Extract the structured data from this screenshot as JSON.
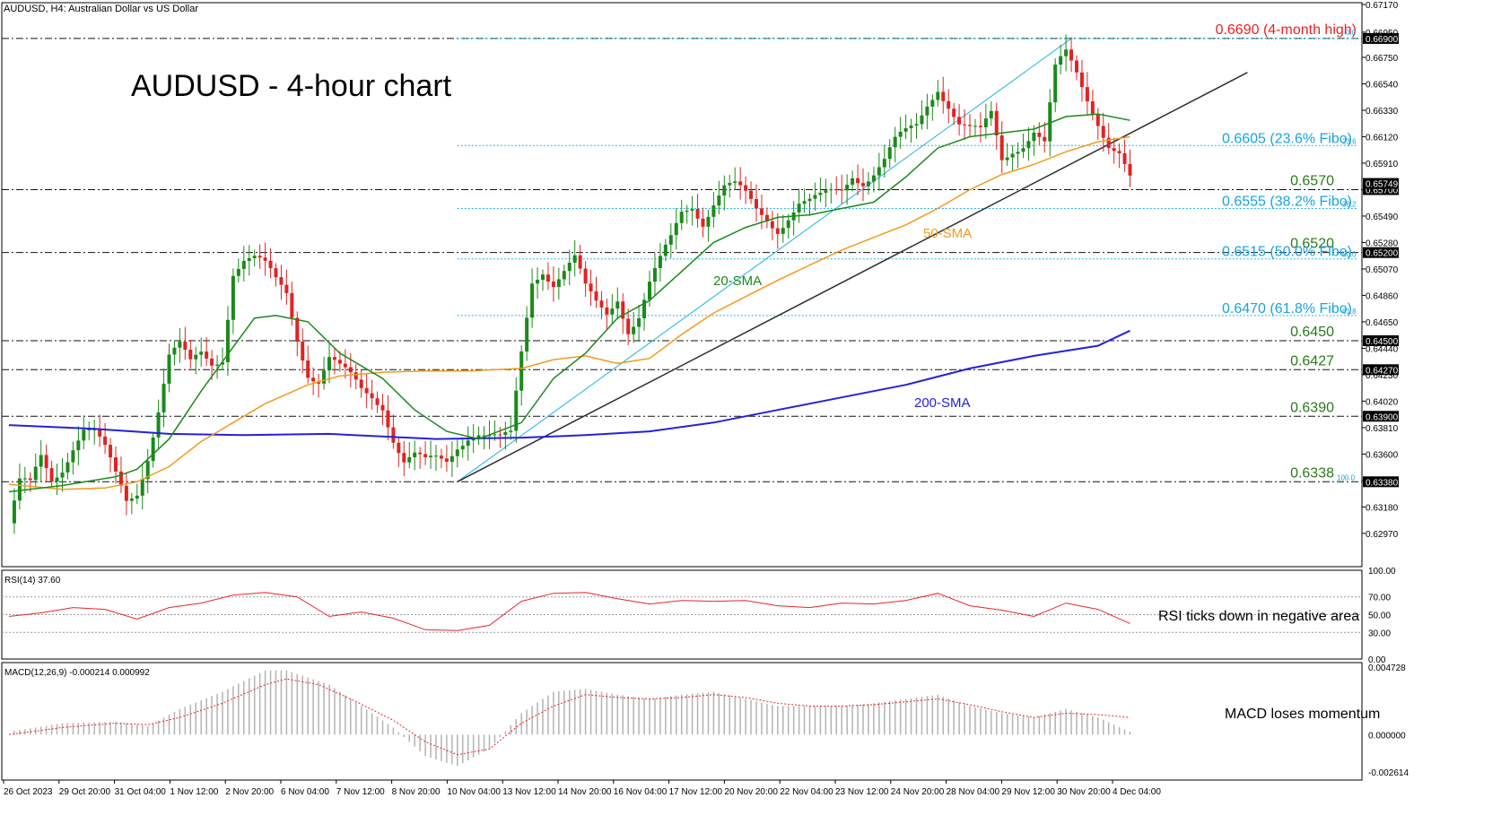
{
  "header": {
    "symbol_line": "AUDUSD, H4:  Australian Dollar vs US Dollar"
  },
  "title": "AUDUSD - 4-hour chart",
  "chart_data": {
    "type": "candlestick",
    "price_axis": {
      "range": [
        0.6272,
        0.6717
      ],
      "ticks": [
        "0.67170",
        "0.66950",
        "0.66750",
        "0.66540",
        "0.66330",
        "0.66120",
        "0.65910",
        "0.65700",
        "0.65490",
        "0.65280",
        "0.65070",
        "0.64860",
        "0.64650",
        "0.64440",
        "0.64230",
        "0.64020",
        "0.63810",
        "0.63600",
        "0.63390",
        "0.63180",
        "0.62970"
      ]
    },
    "time_axis": [
      "26 Oct 2023",
      "29 Oct 20:00",
      "31 Oct 04:00",
      "1 Nov 12:00",
      "2 Nov 20:00",
      "6 Nov 04:00",
      "7 Nov 12:00",
      "8 Nov 20:00",
      "10 Nov 04:00",
      "13 Nov 12:00",
      "14 Nov 20:00",
      "16 Nov 04:00",
      "17 Nov 12:00",
      "20 Nov 20:00",
      "22 Nov 04:00",
      "23 Nov 12:00",
      "24 Nov 20:00",
      "28 Nov 04:00",
      "29 Nov 12:00",
      "30 Nov 20:00",
      "4 Dec 04:00"
    ],
    "price_path": [
      [
        0,
        0.6305
      ],
      [
        2,
        0.6335
      ],
      [
        4,
        0.6332
      ],
      [
        6,
        0.6355
      ],
      [
        8,
        0.634
      ],
      [
        10,
        0.6352
      ],
      [
        12,
        0.637
      ],
      [
        14,
        0.6382
      ],
      [
        16,
        0.6376
      ],
      [
        18,
        0.636
      ],
      [
        20,
        0.634
      ],
      [
        22,
        0.6322
      ],
      [
        24,
        0.6332
      ],
      [
        26,
        0.6362
      ],
      [
        28,
        0.6398
      ],
      [
        30,
        0.6438
      ],
      [
        32,
        0.6443
      ],
      [
        34,
        0.6428
      ],
      [
        36,
        0.6438
      ],
      [
        38,
        0.6433
      ],
      [
        40,
        0.644
      ],
      [
        42,
        0.6508
      ],
      [
        44,
        0.6515
      ],
      [
        46,
        0.6513
      ],
      [
        48,
        0.6506
      ],
      [
        50,
        0.6495
      ],
      [
        52,
        0.6488
      ],
      [
        54,
        0.6455
      ],
      [
        56,
        0.6428
      ],
      [
        58,
        0.642
      ],
      [
        60,
        0.6435
      ],
      [
        62,
        0.6425
      ],
      [
        64,
        0.6418
      ],
      [
        66,
        0.641
      ],
      [
        68,
        0.6408
      ],
      [
        70,
        0.6402
      ],
      [
        72,
        0.6375
      ],
      [
        74,
        0.6354
      ],
      [
        76,
        0.6356
      ],
      [
        78,
        0.635
      ],
      [
        80,
        0.6354
      ],
      [
        82,
        0.6355
      ],
      [
        84,
        0.637
      ],
      [
        86,
        0.6378
      ],
      [
        88,
        0.6378
      ],
      [
        90,
        0.6372
      ],
      [
        92,
        0.6368
      ],
      [
        94,
        0.6372
      ],
      [
        96,
        0.644
      ],
      [
        98,
        0.65
      ],
      [
        100,
        0.651
      ],
      [
        102,
        0.6498
      ],
      [
        104,
        0.6505
      ],
      [
        106,
        0.6512
      ],
      [
        108,
        0.6488
      ],
      [
        110,
        0.6478
      ],
      [
        112,
        0.6473
      ],
      [
        114,
        0.6488
      ],
      [
        116,
        0.6462
      ],
      [
        118,
        0.647
      ],
      [
        120,
        0.6493
      ],
      [
        122,
        0.651
      ],
      [
        124,
        0.6528
      ],
      [
        126,
        0.6552
      ],
      [
        128,
        0.656
      ],
      [
        130,
        0.6548
      ],
      [
        132,
        0.6562
      ],
      [
        134,
        0.6572
      ],
      [
        136,
        0.657
      ],
      [
        138,
        0.6562
      ],
      [
        140,
        0.6552
      ],
      [
        142,
        0.6548
      ],
      [
        144,
        0.6542
      ],
      [
        146,
        0.6552
      ],
      [
        148,
        0.656
      ],
      [
        150,
        0.6558
      ],
      [
        152,
        0.656
      ],
      [
        154,
        0.6565
      ],
      [
        156,
        0.657
      ],
      [
        158,
        0.6585
      ],
      [
        160,
        0.658
      ],
      [
        162,
        0.6585
      ],
      [
        164,
        0.6592
      ],
      [
        166,
        0.6605
      ],
      [
        168,
        0.6612
      ],
      [
        170,
        0.662
      ],
      [
        172,
        0.664
      ],
      [
        174,
        0.6655
      ],
      [
        176,
        0.664
      ],
      [
        178,
        0.6622
      ],
      [
        180,
        0.6615
      ],
      [
        182,
        0.6612
      ],
      [
        184,
        0.6628
      ],
      [
        186,
        0.6595
      ],
      [
        188,
        0.6605
      ],
      [
        190,
        0.661
      ],
      [
        192,
        0.6618
      ],
      [
        194,
        0.6605
      ],
      [
        196,
        0.6662
      ],
      [
        198,
        0.6675
      ],
      [
        200,
        0.6662
      ],
      [
        202,
        0.6645
      ],
      [
        204,
        0.6628
      ],
      [
        206,
        0.6608
      ],
      [
        208,
        0.6598
      ],
      [
        210,
        0.6575
      ]
    ],
    "sma_20": [
      [
        0,
        0.633
      ],
      [
        10,
        0.6335
      ],
      [
        20,
        0.6342
      ],
      [
        24,
        0.6348
      ],
      [
        30,
        0.6372
      ],
      [
        36,
        0.641
      ],
      [
        42,
        0.6445
      ],
      [
        46,
        0.6468
      ],
      [
        50,
        0.647
      ],
      [
        56,
        0.6465
      ],
      [
        62,
        0.644
      ],
      [
        70,
        0.642
      ],
      [
        76,
        0.6395
      ],
      [
        82,
        0.6378
      ],
      [
        88,
        0.6372
      ],
      [
        96,
        0.6385
      ],
      [
        102,
        0.642
      ],
      [
        108,
        0.644
      ],
      [
        114,
        0.6468
      ],
      [
        120,
        0.6482
      ],
      [
        126,
        0.6505
      ],
      [
        132,
        0.6528
      ],
      [
        138,
        0.654
      ],
      [
        144,
        0.6548
      ],
      [
        150,
        0.655
      ],
      [
        156,
        0.6555
      ],
      [
        162,
        0.656
      ],
      [
        168,
        0.658
      ],
      [
        174,
        0.6603
      ],
      [
        180,
        0.6612
      ],
      [
        186,
        0.6615
      ],
      [
        192,
        0.6618
      ],
      [
        198,
        0.6628
      ],
      [
        204,
        0.663
      ],
      [
        210,
        0.6625
      ]
    ],
    "sma_50": [
      [
        0,
        0.6336
      ],
      [
        10,
        0.6332
      ],
      [
        18,
        0.6333
      ],
      [
        24,
        0.6338
      ],
      [
        30,
        0.635
      ],
      [
        36,
        0.637
      ],
      [
        42,
        0.6385
      ],
      [
        48,
        0.64
      ],
      [
        56,
        0.6415
      ],
      [
        62,
        0.6422
      ],
      [
        70,
        0.6425
      ],
      [
        78,
        0.6426
      ],
      [
        86,
        0.6426
      ],
      [
        96,
        0.6428
      ],
      [
        102,
        0.6435
      ],
      [
        108,
        0.6438
      ],
      [
        114,
        0.6432
      ],
      [
        120,
        0.6436
      ],
      [
        126,
        0.6455
      ],
      [
        132,
        0.6472
      ],
      [
        138,
        0.6485
      ],
      [
        144,
        0.6498
      ],
      [
        150,
        0.651
      ],
      [
        156,
        0.6522
      ],
      [
        162,
        0.6532
      ],
      [
        168,
        0.6542
      ],
      [
        174,
        0.6555
      ],
      [
        180,
        0.657
      ],
      [
        186,
        0.6582
      ],
      [
        192,
        0.659
      ],
      [
        198,
        0.66
      ],
      [
        204,
        0.6608
      ],
      [
        210,
        0.6612
      ]
    ],
    "sma_200": [
      [
        0,
        0.6383
      ],
      [
        16,
        0.638
      ],
      [
        30,
        0.6376
      ],
      [
        44,
        0.6375
      ],
      [
        60,
        0.6376
      ],
      [
        80,
        0.6372
      ],
      [
        96,
        0.6373
      ],
      [
        108,
        0.6375
      ],
      [
        120,
        0.6378
      ],
      [
        132,
        0.6385
      ],
      [
        144,
        0.6395
      ],
      [
        156,
        0.6405
      ],
      [
        168,
        0.6415
      ],
      [
        180,
        0.6428
      ],
      [
        192,
        0.6438
      ],
      [
        204,
        0.6446
      ],
      [
        210,
        0.6458
      ]
    ],
    "trendline": [
      [
        84,
        0.6338
      ],
      [
        232,
        0.6663
      ]
    ],
    "fibo_diagonal": [
      [
        84,
        0.6338
      ],
      [
        199,
        0.669
      ]
    ],
    "levels": {
      "dashed": [
        {
          "value": 0.669,
          "label": "0.6690 (4-month high)",
          "axis_tag": "0.66900"
        },
        {
          "value": 0.657,
          "label": "0.6570",
          "axis_tag": "0.65700"
        },
        {
          "value": 0.652,
          "label": "0.6520",
          "axis_tag": "0.65200"
        },
        {
          "value": 0.645,
          "label": "0.6450",
          "axis_tag": "0.64500"
        },
        {
          "value": 0.6427,
          "label": "0.6427",
          "axis_tag": "0.64270"
        },
        {
          "value": 0.639,
          "label": "0.6390",
          "axis_tag": "0.63900"
        },
        {
          "value": 0.6338,
          "label": "0.6338",
          "axis_tag": "0.63380"
        }
      ],
      "fibo": [
        {
          "value": 0.6605,
          "label": "0.6605 (23.6% Fibo)",
          "pct": "23.6"
        },
        {
          "value": 0.6555,
          "label": "0.6555 (38.2% Fibo)",
          "pct": "38.2"
        },
        {
          "value": 0.6515,
          "label": "0.6515 (50.0% Fibo)",
          "pct": "50.0"
        },
        {
          "value": 0.647,
          "label": "0.6470 (61.8% Fibo)",
          "pct": "61.8"
        }
      ],
      "fibo_top_pct": "0.0",
      "fibo_bottom_pct": "100.0"
    },
    "current_price_tag": "0.65749",
    "annotations": {
      "sma20": "20-SMA",
      "sma50": "50-SMA",
      "sma200": "200-SMA"
    },
    "rsi": {
      "header": "RSI(14) 37.60",
      "levels": [
        "100.00",
        "70.00",
        "50.00",
        "30.00",
        "0.00"
      ],
      "note": "RSI ticks down in negative area",
      "path": [
        [
          0,
          48
        ],
        [
          6,
          52
        ],
        [
          12,
          58
        ],
        [
          18,
          56
        ],
        [
          24,
          45
        ],
        [
          30,
          58
        ],
        [
          36,
          63
        ],
        [
          42,
          72
        ],
        [
          48,
          75
        ],
        [
          54,
          70
        ],
        [
          60,
          48
        ],
        [
          66,
          53
        ],
        [
          72,
          46
        ],
        [
          78,
          33
        ],
        [
          84,
          32
        ],
        [
          90,
          38
        ],
        [
          96,
          65
        ],
        [
          102,
          74
        ],
        [
          108,
          75
        ],
        [
          114,
          68
        ],
        [
          120,
          62
        ],
        [
          126,
          66
        ],
        [
          132,
          65
        ],
        [
          138,
          66
        ],
        [
          144,
          60
        ],
        [
          150,
          58
        ],
        [
          156,
          63
        ],
        [
          162,
          62
        ],
        [
          168,
          66
        ],
        [
          174,
          74
        ],
        [
          180,
          60
        ],
        [
          186,
          55
        ],
        [
          192,
          48
        ],
        [
          198,
          63
        ],
        [
          204,
          56
        ],
        [
          210,
          40
        ]
      ]
    },
    "macd": {
      "header": "MACD(12,26,9) -0.000214 0.000992",
      "ticks": [
        "0.004728",
        "0.000000",
        "-0.002614"
      ],
      "note": "MACD loses momentum",
      "histogram": [
        [
          0,
          0.0002
        ],
        [
          10,
          0.0008
        ],
        [
          20,
          0.0009
        ],
        [
          26,
          0.0006
        ],
        [
          32,
          0.0018
        ],
        [
          40,
          0.003
        ],
        [
          48,
          0.0045
        ],
        [
          52,
          0.0045
        ],
        [
          60,
          0.0035
        ],
        [
          66,
          0.002
        ],
        [
          72,
          0.0005
        ],
        [
          78,
          -0.0015
        ],
        [
          84,
          -0.0022
        ],
        [
          90,
          -0.001
        ],
        [
          96,
          0.0015
        ],
        [
          102,
          0.003
        ],
        [
          108,
          0.0032
        ],
        [
          114,
          0.0028
        ],
        [
          120,
          0.0025
        ],
        [
          126,
          0.0028
        ],
        [
          132,
          0.003
        ],
        [
          138,
          0.0025
        ],
        [
          144,
          0.002
        ],
        [
          150,
          0.002
        ],
        [
          156,
          0.002
        ],
        [
          162,
          0.0022
        ],
        [
          168,
          0.0025
        ],
        [
          174,
          0.0028
        ],
        [
          180,
          0.002
        ],
        [
          186,
          0.0015
        ],
        [
          192,
          0.0012
        ],
        [
          198,
          0.0018
        ],
        [
          204,
          0.0012
        ],
        [
          210,
          0.0002
        ]
      ],
      "signal": [
        [
          0,
          0.0
        ],
        [
          10,
          0.0005
        ],
        [
          20,
          0.0008
        ],
        [
          26,
          0.0007
        ],
        [
          32,
          0.0012
        ],
        [
          40,
          0.0022
        ],
        [
          48,
          0.0035
        ],
        [
          52,
          0.0039
        ],
        [
          58,
          0.0035
        ],
        [
          64,
          0.0025
        ],
        [
          72,
          0.001
        ],
        [
          78,
          -0.0005
        ],
        [
          84,
          -0.0014
        ],
        [
          90,
          -0.001
        ],
        [
          96,
          0.0008
        ],
        [
          102,
          0.002
        ],
        [
          108,
          0.0028
        ],
        [
          114,
          0.0026
        ],
        [
          120,
          0.0025
        ],
        [
          126,
          0.0026
        ],
        [
          132,
          0.0028
        ],
        [
          138,
          0.0026
        ],
        [
          144,
          0.0022
        ],
        [
          150,
          0.002
        ],
        [
          156,
          0.002
        ],
        [
          162,
          0.0021
        ],
        [
          168,
          0.0023
        ],
        [
          174,
          0.0025
        ],
        [
          180,
          0.0021
        ],
        [
          186,
          0.0016
        ],
        [
          192,
          0.0012
        ],
        [
          198,
          0.0015
        ],
        [
          204,
          0.0014
        ],
        [
          210,
          0.0012
        ]
      ]
    }
  },
  "colors": {
    "sma20": "#1a8a1a",
    "sma50": "#f39a1b",
    "sma200": "#2222dd",
    "fibo": "#1eb2e8",
    "fibo_text": "#1aa3dc",
    "trend": "#2e2e2e",
    "rsi": "#e8262a",
    "macd_hist": "#b3b3b3",
    "macd_signal": "#e8262a",
    "high": "#ee1e1e",
    "level_text": "#2a7a1a",
    "bull": "#1a8a1a",
    "bear": "#e22222"
  }
}
